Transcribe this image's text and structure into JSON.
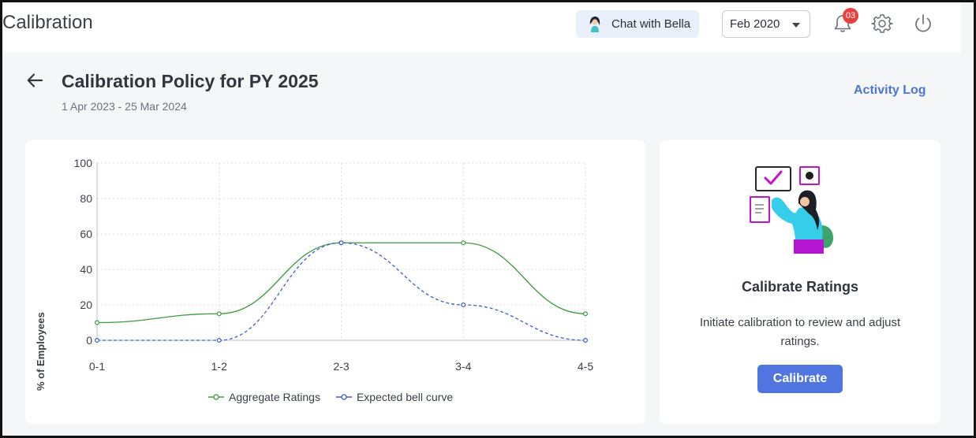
{
  "header": {
    "app_title": "Calibration",
    "chat_label": "Chat with Bella",
    "period_selected": "Feb 2020",
    "notification_count": "03"
  },
  "page": {
    "title": "Calibration Policy for PY 2025",
    "date_range": "1 Apr 2023 - 25 Mar 2024",
    "activity_log": "Activity Log"
  },
  "chart_data": {
    "type": "line",
    "categories": [
      "0-1",
      "1-2",
      "2-3",
      "3-4",
      "4-5"
    ],
    "ylabel": "% of Employees",
    "xlabel": "",
    "ylim": [
      0,
      100
    ],
    "yticks": [
      0,
      20,
      40,
      60,
      80,
      100
    ],
    "grid": true,
    "legend_position": "bottom",
    "series": [
      {
        "name": "Aggregate Ratings",
        "values": [
          10,
          15,
          55,
          55,
          15
        ],
        "color": "#3c9b3c",
        "style": "solid"
      },
      {
        "name": "Expected bell curve",
        "values": [
          0,
          0,
          55,
          20,
          0
        ],
        "color": "#3f5ec9",
        "style": "dashed"
      }
    ]
  },
  "side_card": {
    "title": "Calibrate Ratings",
    "description": "Initiate calibration to review and adjust ratings.",
    "button_label": "Calibrate"
  },
  "icons": {
    "back": "arrow-left-icon",
    "bell": "bell-icon",
    "gear": "gear-icon",
    "power": "power-icon"
  }
}
